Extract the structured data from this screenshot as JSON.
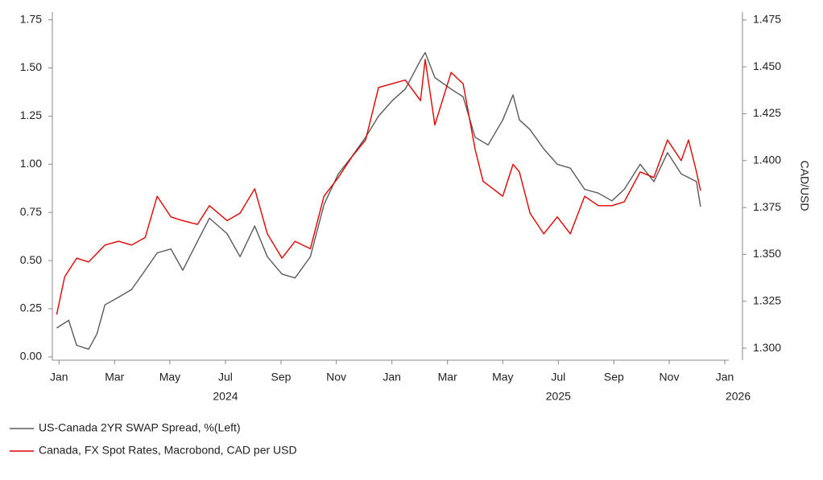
{
  "chart_data": {
    "type": "line",
    "y2label": "CAD/USD",
    "xlim": [
      2023.98,
      2026.012
    ],
    "xticks": [
      {
        "value": 2024.0,
        "label": "Jan"
      },
      {
        "value": 2024.167,
        "label": "Mar"
      },
      {
        "value": 2024.333,
        "label": "May"
      },
      {
        "value": 2024.5,
        "label": "Jul"
      },
      {
        "value": 2024.667,
        "label": "Sep"
      },
      {
        "value": 2024.833,
        "label": "Nov"
      },
      {
        "value": 2025.0,
        "label": "Jan"
      },
      {
        "value": 2025.167,
        "label": "Mar"
      },
      {
        "value": 2025.333,
        "label": "May"
      },
      {
        "value": 2025.5,
        "label": "Jul"
      },
      {
        "value": 2025.667,
        "label": "Sep"
      },
      {
        "value": 2025.833,
        "label": "Nov"
      },
      {
        "value": 2026.0,
        "label": "Jan"
      }
    ],
    "xyears": [
      {
        "value": 2024.5,
        "label": "2024"
      },
      {
        "value": 2025.5,
        "label": "2025"
      },
      {
        "value": 2026.04,
        "label": "2026"
      }
    ],
    "ylim": [
      -0.017,
      1.79
    ],
    "yticks": [
      {
        "value": 0,
        "label": "0.00"
      },
      {
        "value": 0.25,
        "label": "0.25"
      },
      {
        "value": 0.5,
        "label": "0.50"
      },
      {
        "value": 0.75,
        "label": "0.75"
      },
      {
        "value": 1.0,
        "label": "1.00"
      },
      {
        "value": 1.25,
        "label": "1.25"
      },
      {
        "value": 1.5,
        "label": "1.50"
      },
      {
        "value": 1.75,
        "label": "1.75"
      }
    ],
    "y2lim": [
      1.2936,
      1.4792
    ],
    "y2ticks": [
      {
        "value": 1.3,
        "label": "1.300"
      },
      {
        "value": 1.325,
        "label": "1.325"
      },
      {
        "value": 1.35,
        "label": "1.350"
      },
      {
        "value": 1.375,
        "label": "1.375"
      },
      {
        "value": 1.4,
        "label": "1.400"
      },
      {
        "value": 1.425,
        "label": "1.425"
      },
      {
        "value": 1.45,
        "label": "1.450"
      },
      {
        "value": 1.475,
        "label": "1.475"
      }
    ],
    "series": [
      {
        "name": "US-Canada 2YR SWAP Spread, %(Left)",
        "color": "#5a5a5a",
        "axis": "y",
        "x": [
          2023.993,
          2024.029,
          2024.053,
          2024.089,
          2024.114,
          2024.138,
          2024.179,
          2024.218,
          2024.259,
          2024.295,
          2024.336,
          2024.372,
          2024.416,
          2024.452,
          2024.505,
          2024.544,
          2024.588,
          2024.626,
          2024.67,
          2024.709,
          2024.755,
          2024.796,
          2024.839,
          2024.88,
          2024.921,
          2024.96,
          2025.001,
          2025.04,
          2025.086,
          2025.1,
          2025.129,
          2025.178,
          2025.214,
          2025.25,
          2025.289,
          2025.333,
          2025.364,
          2025.383,
          2025.415,
          2025.456,
          2025.497,
          2025.536,
          2025.579,
          2025.62,
          2025.661,
          2025.698,
          2025.746,
          2025.787,
          2025.828,
          2025.869,
          2025.915,
          2025.927
        ],
        "values": [
          0.15,
          0.19,
          0.06,
          0.04,
          0.12,
          0.27,
          0.31,
          0.35,
          0.45,
          0.54,
          0.56,
          0.45,
          0.6,
          0.72,
          0.64,
          0.52,
          0.68,
          0.52,
          0.43,
          0.41,
          0.52,
          0.79,
          0.95,
          1.04,
          1.14,
          1.25,
          1.33,
          1.39,
          1.54,
          1.58,
          1.45,
          1.39,
          1.35,
          1.14,
          1.1,
          1.23,
          1.36,
          1.23,
          1.18,
          1.08,
          1.0,
          0.98,
          0.87,
          0.85,
          0.81,
          0.87,
          1.0,
          0.91,
          1.06,
          0.95,
          0.91,
          0.78
        ]
      },
      {
        "name": "Canada, FX Spot Rates, Macrobond, CAD per USD",
        "color": "#e00000",
        "axis": "y2",
        "x": [
          2023.993,
          2024.017,
          2024.053,
          2024.089,
          2024.138,
          2024.179,
          2024.218,
          2024.259,
          2024.295,
          2024.336,
          2024.372,
          2024.416,
          2024.452,
          2024.505,
          2024.544,
          2024.588,
          2024.626,
          2024.67,
          2024.709,
          2024.755,
          2024.796,
          2024.839,
          2024.88,
          2024.921,
          2024.96,
          2025.001,
          2025.04,
          2025.086,
          2025.1,
          2025.129,
          2025.178,
          2025.214,
          2025.25,
          2025.274,
          2025.333,
          2025.364,
          2025.383,
          2025.415,
          2025.456,
          2025.497,
          2025.536,
          2025.579,
          2025.62,
          2025.661,
          2025.698,
          2025.746,
          2025.787,
          2025.828,
          2025.869,
          2025.891,
          2025.915,
          2025.927
        ],
        "values": [
          1.318,
          1.338,
          1.348,
          1.346,
          1.355,
          1.357,
          1.355,
          1.359,
          1.381,
          1.37,
          1.368,
          1.366,
          1.376,
          1.368,
          1.372,
          1.385,
          1.361,
          1.348,
          1.357,
          1.353,
          1.381,
          1.391,
          1.402,
          1.411,
          1.439,
          1.441,
          1.443,
          1.432,
          1.454,
          1.419,
          1.447,
          1.441,
          1.406,
          1.389,
          1.381,
          1.398,
          1.394,
          1.372,
          1.361,
          1.37,
          1.361,
          1.381,
          1.376,
          1.376,
          1.378,
          1.394,
          1.391,
          1.411,
          1.4,
          1.411,
          1.394,
          1.384
        ]
      }
    ]
  }
}
